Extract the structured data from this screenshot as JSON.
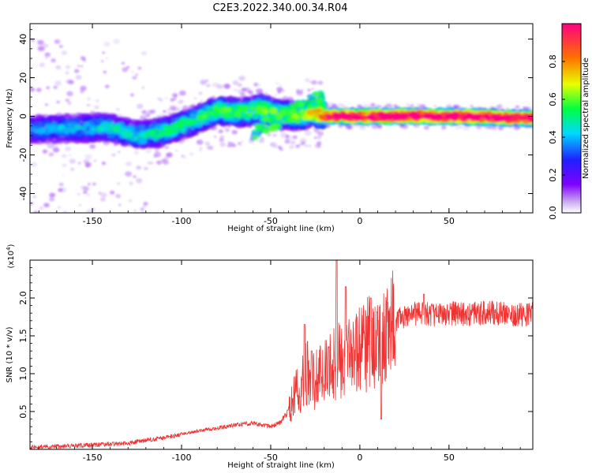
{
  "title": "C2E3.2022.340.00.34.R04",
  "chart_data": [
    {
      "type": "heatmap",
      "title": "C2E3.2022.340.00.34.R04",
      "xlabel": "Height of straight line (km)",
      "ylabel": "Frequency (Hz)",
      "xlim": [
        -185,
        97
      ],
      "ylim": [
        -50,
        48
      ],
      "x_ticks": [
        "-150",
        "-100",
        "-50",
        "0",
        "50"
      ],
      "x_tick_values": [
        -150,
        -100,
        -50,
        0,
        50
      ],
      "y_ticks": [
        "40",
        "20",
        "0",
        "-20",
        "-40"
      ],
      "y_tick_values": [
        40,
        20,
        0,
        -20,
        -40
      ],
      "colorbar": {
        "label": "Normalized spectral amplitude",
        "range": [
          0,
          1
        ],
        "ticks": [
          "0.0",
          "0.2",
          "0.4",
          "0.6",
          "0.8"
        ],
        "tick_values": [
          0.0,
          0.2,
          0.4,
          0.6,
          0.8
        ],
        "colors": [
          "#ffffff",
          "#c8a8f0",
          "#8000ff",
          "#2020ff",
          "#00d8ff",
          "#00ff40",
          "#e8ff00",
          "#ff7000",
          "#ff0080"
        ]
      },
      "ridge": {
        "x": [
          -185,
          -160,
          -140,
          -125,
          -110,
          -95,
          -80,
          -65,
          -55,
          -45,
          -35,
          -25,
          -18,
          0,
          50,
          97
        ],
        "y": [
          -7,
          -6,
          -6,
          -10,
          -8,
          -3,
          3,
          2,
          4,
          1,
          0,
          2,
          0,
          0,
          0,
          -1
        ],
        "amplitude": [
          0.35,
          0.4,
          0.45,
          0.45,
          0.5,
          0.5,
          0.55,
          0.55,
          0.6,
          0.55,
          0.6,
          0.7,
          0.9,
          0.95,
          0.95,
          0.9
        ]
      }
    },
    {
      "type": "line",
      "xlabel": "Height of straight line (km)",
      "ylabel": "SNR (10 * v/v)",
      "scale_label": "(x10",
      "scale_exp": "4",
      "scale_close": ")",
      "color": "#ee3333",
      "xlim": [
        -185,
        97
      ],
      "ylim": [
        0,
        2.5
      ],
      "x_ticks": [
        "-150",
        "-100",
        "-50",
        "0",
        "50"
      ],
      "x_tick_values": [
        -150,
        -100,
        -50,
        0,
        50
      ],
      "y_ticks": [
        "2.0",
        "1.5",
        "1.0",
        "0.5"
      ],
      "y_tick_values": [
        2.0,
        1.5,
        1.0,
        0.5
      ],
      "series": [
        {
          "name": "SNR",
          "x": [
            -185,
            -170,
            -155,
            -140,
            -130,
            -120,
            -110,
            -100,
            -90,
            -80,
            -70,
            -60,
            -50,
            -45,
            -40,
            -35,
            -30,
            -25,
            -20,
            -15,
            -12,
            -10,
            -5,
            0,
            5,
            10,
            15,
            20,
            25,
            30,
            40,
            50,
            60,
            70,
            80,
            90,
            97
          ],
          "y": [
            0.03,
            0.04,
            0.05,
            0.07,
            0.08,
            0.12,
            0.15,
            0.2,
            0.25,
            0.28,
            0.32,
            0.35,
            0.3,
            0.35,
            0.5,
            0.8,
            1.0,
            0.9,
            1.0,
            1.1,
            1.2,
            1.15,
            1.25,
            1.3,
            1.4,
            1.35,
            1.55,
            1.7,
            1.75,
            1.8,
            1.78,
            1.8,
            1.78,
            1.8,
            1.8,
            1.78,
            1.8
          ],
          "spikes": [
            {
              "x": -31,
              "y": 1.65
            },
            {
              "x": -27,
              "y": 1.3
            },
            {
              "x": -13,
              "y": 2.5
            },
            {
              "x": -8,
              "y": 2.15
            },
            {
              "x": 6,
              "y": 2.0
            },
            {
              "x": 12,
              "y": 0.4
            },
            {
              "x": 36,
              "y": 2.05
            }
          ]
        }
      ]
    }
  ]
}
